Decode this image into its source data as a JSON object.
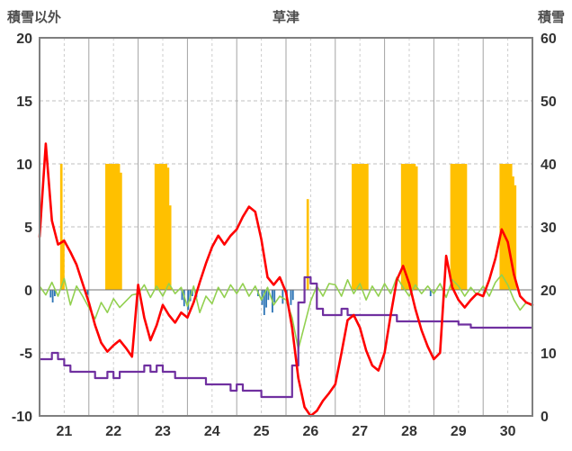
{
  "header": {
    "left_axis_title": "積雪以外",
    "title": "草津",
    "right_axis_title": "積雪"
  },
  "chart_data": {
    "type": "line",
    "title": "草津",
    "left_axis": {
      "title": "積雪以外",
      "min": -10,
      "max": 20,
      "ticks": [
        20,
        15,
        10,
        5,
        0,
        -5,
        -10
      ]
    },
    "right_axis": {
      "title": "積雪",
      "min": 0,
      "max": 60,
      "ticks": [
        60,
        50,
        40,
        30,
        20,
        10,
        0
      ]
    },
    "x_range": [
      21,
      31
    ],
    "x_ticks": [
      21,
      22,
      23,
      24,
      25,
      26,
      27,
      28,
      29,
      30
    ],
    "grid": "on",
    "legend": "none",
    "step_days": 0.125,
    "bar_width_hours": 1,
    "colors": {
      "red_line": "#ff0000",
      "green_line": "#92d050",
      "purple_line": "#7030a0",
      "orange_bars": "#ffc000",
      "blue_bars": "#2e75b6",
      "grid_dashed": "#bfbfbf",
      "grid_day": "#a3a3a3",
      "grid_halfday": "#cccccc",
      "border": "#7f7f7f",
      "zero_line": "#737373",
      "text": "#333333"
    },
    "red_line_left_axis": [
      4.2,
      11.6,
      5.5,
      3.6,
      3.9,
      3.0,
      2.0,
      0.5,
      -1.0,
      -2.8,
      -4.2,
      -4.9,
      -4.4,
      -4.0,
      -4.6,
      -5.3,
      0.4,
      -2.2,
      -4.0,
      -2.8,
      -1.2,
      -2.0,
      -2.6,
      -1.8,
      -2.2,
      -1.0,
      0.6,
      2.1,
      3.4,
      4.3,
      3.6,
      4.3,
      4.8,
      5.8,
      6.6,
      6.2,
      4.0,
      1.0,
      0.4,
      1.0,
      -0.2,
      -3.0,
      -7.0,
      -9.3,
      -10.0,
      -9.6,
      -8.8,
      -8.2,
      -7.5,
      -5.0,
      -2.4,
      -2.0,
      -3.0,
      -4.8,
      -6.0,
      -6.4,
      -5.0,
      -2.0,
      0.8,
      1.9,
      0.5,
      -1.5,
      -3.2,
      -4.5,
      -5.5,
      -5.0,
      2.7,
      0.2,
      -0.8,
      -1.4,
      -0.8,
      -0.3,
      -0.5,
      0.8,
      2.5,
      4.8,
      3.8,
      1.2,
      -0.5,
      -1.0,
      -1.2
    ],
    "green_line_left_axis": [
      0.3,
      -0.4,
      0.6,
      -0.5,
      0.9,
      -1.2,
      0.3,
      -0.5,
      -1.4,
      -2.3,
      -1.0,
      -1.8,
      -0.7,
      -1.4,
      -0.9,
      -0.4,
      -0.3,
      0.4,
      -0.6,
      0.3,
      -0.5,
      0.5,
      -0.3,
      0.2,
      -1.3,
      0.3,
      -1.8,
      -0.5,
      -1.1,
      0.2,
      -0.6,
      0.4,
      -0.3,
      0.5,
      -0.5,
      0.3,
      -0.8,
      0.2,
      -1.2,
      -0.5,
      -0.8,
      -2.2,
      -4.7,
      -2.8,
      -0.9,
      0.3,
      -0.5,
      0.5,
      0.4,
      -0.5,
      0.8,
      -0.3,
      0.5,
      -0.8,
      0.3,
      -0.5,
      0.5,
      -0.3,
      1.0,
      0.2,
      -0.5,
      0.4,
      -0.3,
      0.3,
      -0.3,
      0.5,
      -0.6,
      0.8,
      0.3,
      -0.5,
      0.2,
      -0.4,
      0.3,
      -0.5,
      0.6,
      1.2,
      0.4,
      -0.8,
      -1.6,
      -1.0,
      -1.3
    ],
    "purple_line_right_axis": [
      9,
      9,
      10,
      9,
      8,
      7,
      7,
      7,
      7,
      6,
      6,
      7,
      6,
      7,
      7,
      7,
      7,
      8,
      7,
      8,
      7,
      7,
      6,
      6,
      6,
      6,
      6,
      5,
      5,
      5,
      5,
      4,
      5,
      4,
      4,
      4,
      3,
      3,
      3,
      3,
      3,
      8,
      18,
      22,
      21,
      17,
      16,
      16,
      16,
      17,
      16,
      16,
      16,
      16,
      16,
      16,
      16,
      16,
      15,
      15,
      15,
      15,
      15,
      15,
      15,
      15,
      15,
      15,
      14.5,
      14.5,
      14,
      14,
      14,
      14,
      14,
      14,
      14,
      14,
      14,
      14,
      14
    ],
    "orange_bars_left_axis": [
      [
        21.417,
        10
      ],
      [
        21.458,
        4
      ],
      [
        22.333,
        10
      ],
      [
        22.375,
        10
      ],
      [
        22.417,
        10
      ],
      [
        22.458,
        10
      ],
      [
        22.5,
        10
      ],
      [
        22.542,
        10
      ],
      [
        22.583,
        10
      ],
      [
        22.625,
        9.3
      ],
      [
        23.333,
        10
      ],
      [
        23.375,
        10
      ],
      [
        23.417,
        10
      ],
      [
        23.458,
        10
      ],
      [
        23.5,
        10
      ],
      [
        23.542,
        10
      ],
      [
        23.583,
        9.7
      ],
      [
        23.625,
        6.7
      ],
      [
        26.417,
        7.2
      ],
      [
        27.333,
        10
      ],
      [
        27.375,
        10
      ],
      [
        27.417,
        10
      ],
      [
        27.458,
        10
      ],
      [
        27.5,
        10
      ],
      [
        27.542,
        10
      ],
      [
        27.583,
        10
      ],
      [
        27.625,
        10
      ],
      [
        28.333,
        10
      ],
      [
        28.375,
        10
      ],
      [
        28.417,
        10
      ],
      [
        28.458,
        10
      ],
      [
        28.5,
        10
      ],
      [
        28.542,
        10
      ],
      [
        28.583,
        10
      ],
      [
        28.625,
        9.8
      ],
      [
        29.333,
        10
      ],
      [
        29.375,
        10
      ],
      [
        29.417,
        10
      ],
      [
        29.458,
        10
      ],
      [
        29.5,
        10
      ],
      [
        29.542,
        10
      ],
      [
        29.583,
        10
      ],
      [
        29.625,
        10
      ],
      [
        30.333,
        10
      ],
      [
        30.375,
        10
      ],
      [
        30.417,
        10
      ],
      [
        30.458,
        10
      ],
      [
        30.5,
        10
      ],
      [
        30.542,
        10
      ],
      [
        30.583,
        9
      ],
      [
        30.625,
        8.3
      ]
    ],
    "blue_bars_left_axis": [
      [
        21.208,
        -0.6
      ],
      [
        21.25,
        -1.0
      ],
      [
        21.292,
        -0.5
      ],
      [
        21.958,
        -0.4
      ],
      [
        23.875,
        -0.8
      ],
      [
        23.917,
        -1.3
      ],
      [
        24.0,
        -1.6
      ],
      [
        24.042,
        -0.9
      ],
      [
        24.083,
        -0.5
      ],
      [
        24.167,
        -0.6
      ],
      [
        25.417,
        -0.5
      ],
      [
        25.5,
        -1.2
      ],
      [
        25.542,
        -2.0
      ],
      [
        25.583,
        -1.4
      ],
      [
        25.625,
        -0.8
      ],
      [
        25.708,
        -1.8
      ],
      [
        25.75,
        -1.0
      ],
      [
        25.917,
        -1.1
      ],
      [
        26.0,
        -0.9
      ],
      [
        26.083,
        -1.2
      ],
      [
        26.125,
        -0.8
      ],
      [
        28.917,
        -0.5
      ]
    ]
  }
}
